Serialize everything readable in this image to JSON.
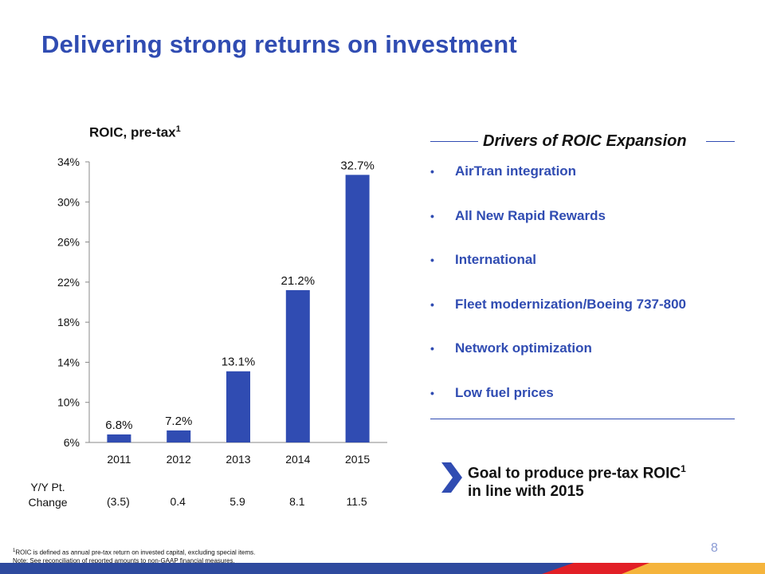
{
  "title": "Delivering strong returns on investment",
  "chart_data": {
    "type": "bar",
    "title": "ROIC, pre-tax",
    "title_superscript": "1",
    "categories": [
      "2011",
      "2012",
      "2013",
      "2014",
      "2015"
    ],
    "values": [
      6.8,
      7.2,
      13.1,
      21.2,
      32.7
    ],
    "data_labels": [
      "6.8%",
      "7.2%",
      "13.1%",
      "21.2%",
      "32.7%"
    ],
    "yticks": [
      6,
      10,
      14,
      18,
      22,
      26,
      30,
      34
    ],
    "ytick_labels": [
      "6%",
      "10%",
      "14%",
      "18%",
      "22%",
      "26%",
      "30%",
      "34%"
    ],
    "ylim": [
      6,
      34
    ],
    "bar_color": "#304CB2",
    "xlabel": "",
    "ylabel": ""
  },
  "yy_change": {
    "label_line1": "Y/Y Pt.",
    "label_line2": "Change",
    "values": [
      "(3.5)",
      "0.4",
      "5.9",
      "8.1",
      "11.5"
    ]
  },
  "drivers": {
    "heading": "Drivers of ROIC Expansion",
    "bullet": "•",
    "items": [
      "AirTran integration",
      "All New Rapid Rewards",
      "International",
      "Fleet modernization/Boeing 737-800",
      "Network optimization",
      "Low fuel prices"
    ]
  },
  "goal": {
    "line1": "Goal to produce pre-tax ROIC",
    "superscript": "1",
    "line2": "in line with 2015"
  },
  "page_number": "8",
  "footnote": {
    "sup": "1",
    "line1": "ROIC is defined as annual pre-tax return on invested capital, excluding special items.",
    "line2": "Note: See reconciliation of reported amounts to non-GAAP financial measures."
  },
  "colors": {
    "brand_blue": "#304CB2",
    "footer_blue": "#2E4A9E",
    "footer_red": "#E21F26",
    "footer_yellow": "#F5B43C"
  }
}
